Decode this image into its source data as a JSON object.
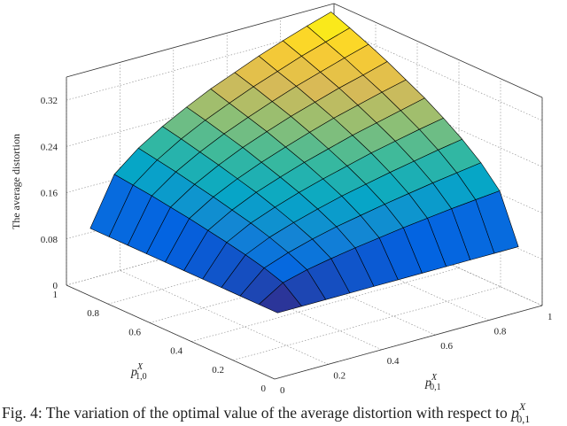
{
  "chart_data": {
    "type": "surface",
    "zlabel": "The average distortion",
    "xlabel": {
      "base": "p",
      "sup": "X",
      "sub": "1,0"
    },
    "ylabel": {
      "base": "p",
      "sup": "X",
      "sub": "0,1"
    },
    "caption": {
      "text": "Fig. 4: The variation of the optimal value of the average distortion with respect to ",
      "base": "p",
      "sup": "X",
      "sub": "0,1"
    },
    "x": [
      0.05,
      0.14,
      0.23,
      0.32,
      0.41,
      0.5,
      0.59,
      0.68,
      0.77,
      0.86,
      0.95
    ],
    "y": [
      0.05,
      0.14,
      0.23,
      0.32,
      0.41,
      0.5,
      0.59,
      0.68,
      0.77,
      0.86,
      0.95
    ],
    "z": [
      [
        0.1,
        0.1,
        0.1,
        0.1,
        0.1,
        0.1,
        0.1,
        0.1,
        0.1,
        0.1,
        0.1
      ],
      [
        0.1,
        0.126,
        0.137,
        0.145,
        0.152,
        0.158,
        0.164,
        0.169,
        0.174,
        0.178,
        0.182
      ],
      [
        0.1,
        0.137,
        0.152,
        0.164,
        0.174,
        0.182,
        0.19,
        0.197,
        0.204,
        0.21,
        0.216
      ],
      [
        0.1,
        0.145,
        0.164,
        0.178,
        0.19,
        0.201,
        0.21,
        0.219,
        0.227,
        0.235,
        0.242
      ],
      [
        0.1,
        0.152,
        0.174,
        0.19,
        0.204,
        0.216,
        0.227,
        0.238,
        0.247,
        0.256,
        0.264
      ],
      [
        0.1,
        0.158,
        0.182,
        0.201,
        0.216,
        0.23,
        0.242,
        0.254,
        0.264,
        0.274,
        0.284
      ],
      [
        0.1,
        0.164,
        0.19,
        0.21,
        0.227,
        0.242,
        0.256,
        0.269,
        0.28,
        0.291,
        0.301
      ],
      [
        0.1,
        0.169,
        0.197,
        0.219,
        0.238,
        0.254,
        0.269,
        0.282,
        0.295,
        0.306,
        0.318
      ],
      [
        0.1,
        0.174,
        0.204,
        0.227,
        0.247,
        0.264,
        0.28,
        0.295,
        0.308,
        0.321,
        0.333
      ],
      [
        0.1,
        0.178,
        0.21,
        0.235,
        0.256,
        0.274,
        0.291,
        0.306,
        0.321,
        0.334,
        0.347
      ],
      [
        0.1,
        0.182,
        0.216,
        0.242,
        0.264,
        0.284,
        0.301,
        0.318,
        0.333,
        0.347,
        0.36
      ]
    ],
    "xlim": [
      0,
      1
    ],
    "xticks": [
      0,
      0.2,
      0.4,
      0.6,
      0.8,
      1
    ],
    "ylim": [
      0,
      1
    ],
    "yticks": [
      0,
      0.2,
      0.4,
      0.6,
      0.8,
      1
    ],
    "zlim": [
      0,
      0.36
    ],
    "zticks": [
      0,
      0.08,
      0.16,
      0.24,
      0.32
    ],
    "grid": true,
    "edgecolor": "#000000",
    "colormap": [
      "#352a87",
      "#0363e1",
      "#1485d4",
      "#06a7c6",
      "#38b99e",
      "#92bf73",
      "#d9ba56",
      "#fcce2e",
      "#f9fb0e"
    ]
  }
}
